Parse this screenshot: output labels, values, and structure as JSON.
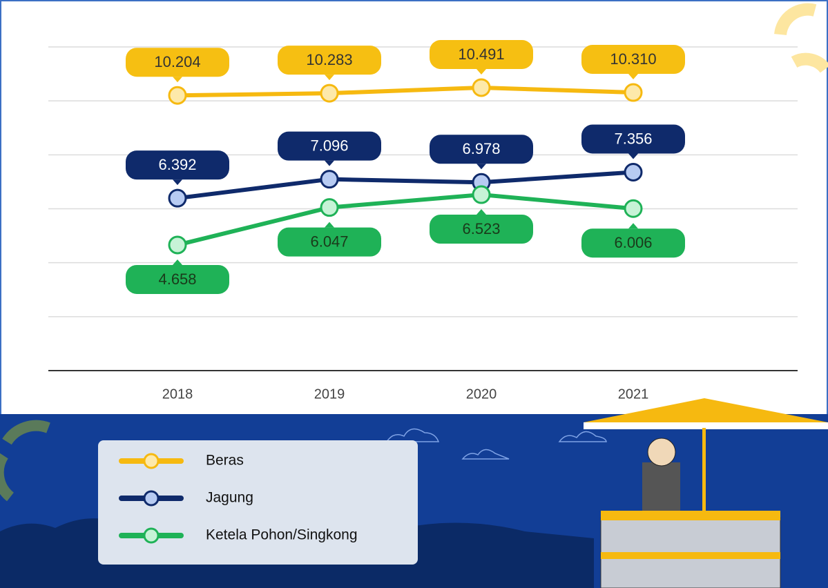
{
  "chart_data": {
    "type": "line",
    "categories": [
      "2018",
      "2019",
      "2020",
      "2021"
    ],
    "series": [
      {
        "name": "Beras",
        "color": "#f6b910",
        "values": [
          10204,
          10283,
          10491,
          10310
        ],
        "value_labels": [
          "10.204",
          "10.283",
          "10.491",
          "10.310"
        ]
      },
      {
        "name": "Jagung",
        "color": "#0f2a6b",
        "values": [
          6392,
          7096,
          6978,
          7356
        ],
        "value_labels": [
          "6.392",
          "7.096",
          "6.978",
          "7.356"
        ]
      },
      {
        "name": "Ketela Pohon/Singkong",
        "color": "#1fb257",
        "values": [
          4658,
          6047,
          6523,
          6006
        ],
        "value_labels": [
          "4.658",
          "6.047",
          "6.523",
          "6.006"
        ]
      }
    ],
    "ylim": [
      0,
      12000
    ],
    "yticks": [
      0,
      2000,
      4000,
      6000,
      8000,
      10000,
      12000
    ],
    "grid": true
  }
}
